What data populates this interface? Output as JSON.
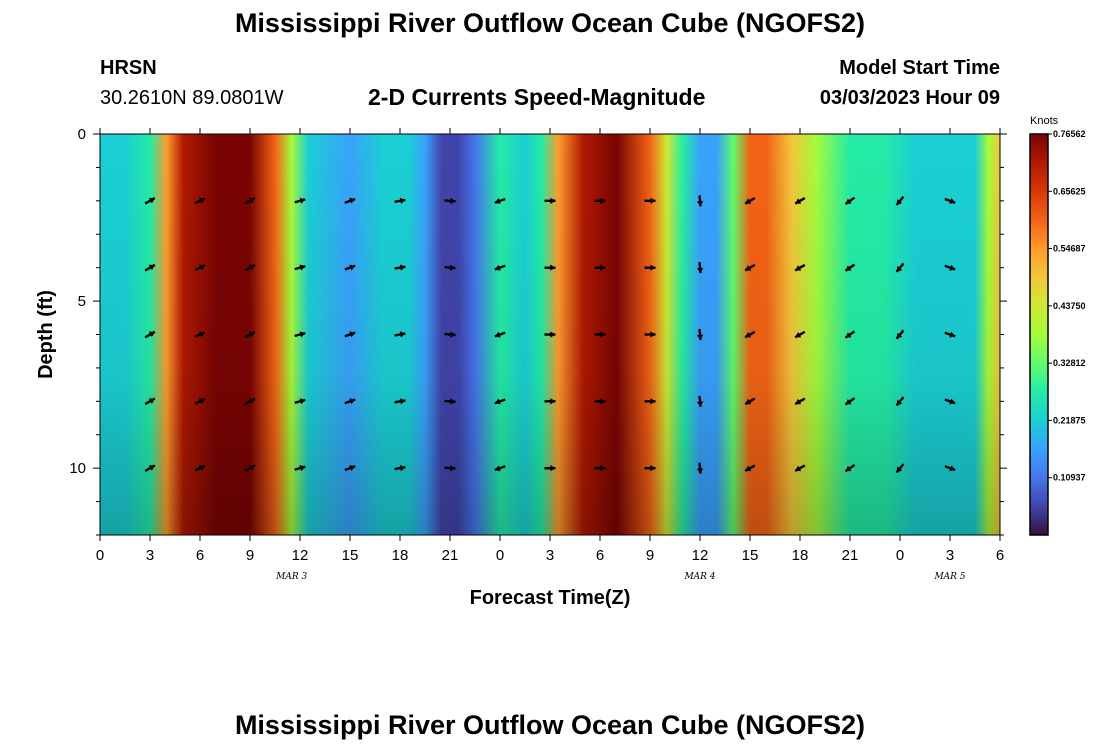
{
  "header": {
    "title": "Mississippi River Outflow Ocean Cube (NGOFS2)",
    "station": "HRSN",
    "coords": "30.2610N  89.0801W",
    "subtitle": "2-D Currents Speed-Magnitude",
    "model_start_label": "Model Start Time",
    "model_start_value": "03/03/2023 Hour 09"
  },
  "footer": {
    "title": "Mississippi River Outflow Ocean Cube (NGOFS2)"
  },
  "chart_data": {
    "type": "heatmap",
    "title": "2-D Currents Speed-Magnitude",
    "xlabel": "Forecast Time(Z)",
    "ylabel": "Depth (ft)",
    "x_range_hours": [
      0,
      54
    ],
    "ylim": [
      0,
      12
    ],
    "x_tick_labels": [
      "0",
      "3",
      "6",
      "9",
      "12",
      "15",
      "18",
      "21",
      "0",
      "3",
      "6",
      "9",
      "12",
      "15",
      "18",
      "21",
      "0",
      "3",
      "6"
    ],
    "y_tick_labels": [
      "0",
      "5",
      "10"
    ],
    "y_tick_values": [
      0,
      5,
      10
    ],
    "date_labels": [
      {
        "text": "MAR 3",
        "hour": 11.5
      },
      {
        "text": "MAR 4",
        "hour": 36
      },
      {
        "text": "MAR 5",
        "hour": 51
      }
    ],
    "colorbar": {
      "unit": "Knots",
      "min": 0.0,
      "max": 0.7656,
      "labels": [
        "0.76562",
        "0.65625",
        "0.54687",
        "0.43750",
        "0.32812",
        "0.21875",
        "0.10937"
      ],
      "label_values": [
        0.76562,
        0.65625,
        0.54687,
        0.4375,
        0.32812,
        0.21875,
        0.10937
      ],
      "colors": [
        "#30123b",
        "#4145ab",
        "#4675ed",
        "#39a2fc",
        "#1bcfd4",
        "#24eca6",
        "#61fc6c",
        "#a4fc3b",
        "#d1e834",
        "#f3c63a",
        "#fe9b2d",
        "#f36315",
        "#d93806",
        "#b11901",
        "#7a0403"
      ]
    },
    "speed_profile_knots": [
      {
        "hour": 0,
        "speed": 0.2
      },
      {
        "hour": 1.5,
        "speed": 0.24
      },
      {
        "hour": 3,
        "speed": 0.3
      },
      {
        "hour": 4,
        "speed": 0.55
      },
      {
        "hour": 5,
        "speed": 0.7
      },
      {
        "hour": 7,
        "speed": 0.75
      },
      {
        "hour": 9,
        "speed": 0.74
      },
      {
        "hour": 10.5,
        "speed": 0.58
      },
      {
        "hour": 11.5,
        "speed": 0.38
      },
      {
        "hour": 12.5,
        "speed": 0.24
      },
      {
        "hour": 15,
        "speed": 0.18
      },
      {
        "hour": 17,
        "speed": 0.2
      },
      {
        "hour": 18.5,
        "speed": 0.24
      },
      {
        "hour": 19.5,
        "speed": 0.16
      },
      {
        "hour": 20.5,
        "speed": 0.06
      },
      {
        "hour": 21.5,
        "speed": 0.04
      },
      {
        "hour": 22.5,
        "speed": 0.1
      },
      {
        "hour": 24,
        "speed": 0.28
      },
      {
        "hour": 25.5,
        "speed": 0.24
      },
      {
        "hour": 26.5,
        "speed": 0.3
      },
      {
        "hour": 27.5,
        "speed": 0.55
      },
      {
        "hour": 29,
        "speed": 0.72
      },
      {
        "hour": 31,
        "speed": 0.76
      },
      {
        "hour": 33,
        "speed": 0.62
      },
      {
        "hour": 34,
        "speed": 0.44
      },
      {
        "hour": 35,
        "speed": 0.26
      },
      {
        "hour": 36,
        "speed": 0.14
      },
      {
        "hour": 37,
        "speed": 0.15
      },
      {
        "hour": 38,
        "speed": 0.35
      },
      {
        "hour": 39,
        "speed": 0.6
      },
      {
        "hour": 40,
        "speed": 0.62
      },
      {
        "hour": 41.5,
        "speed": 0.5
      },
      {
        "hour": 43,
        "speed": 0.38
      },
      {
        "hour": 45,
        "speed": 0.3
      },
      {
        "hour": 47,
        "speed": 0.26
      },
      {
        "hour": 49,
        "speed": 0.24
      },
      {
        "hour": 51,
        "speed": 0.2
      },
      {
        "hour": 52.5,
        "speed": 0.24
      },
      {
        "hour": 53.3,
        "speed": 0.38
      },
      {
        "hour": 54,
        "speed": 0.5
      }
    ],
    "vectors": [
      {
        "hour": 3,
        "dir": 60
      },
      {
        "hour": 6,
        "dir": 65
      },
      {
        "hour": 9,
        "dir": 60
      },
      {
        "hour": 12,
        "dir": 75
      },
      {
        "hour": 15,
        "dir": 70
      },
      {
        "hour": 18,
        "dir": 80
      },
      {
        "hour": 21,
        "dir": 95
      },
      {
        "hour": 24,
        "dir": 250
      },
      {
        "hour": 27,
        "dir": 90
      },
      {
        "hour": 30,
        "dir": 90
      },
      {
        "hour": 33,
        "dir": 90
      },
      {
        "hour": 36,
        "dir": 175
      },
      {
        "hour": 39,
        "dir": 240
      },
      {
        "hour": 42,
        "dir": 240
      },
      {
        "hour": 45,
        "dir": 235
      },
      {
        "hour": 48,
        "dir": 220
      },
      {
        "hour": 51,
        "dir": 110
      }
    ],
    "vector_depths": [
      2,
      4,
      6,
      8,
      10
    ]
  }
}
